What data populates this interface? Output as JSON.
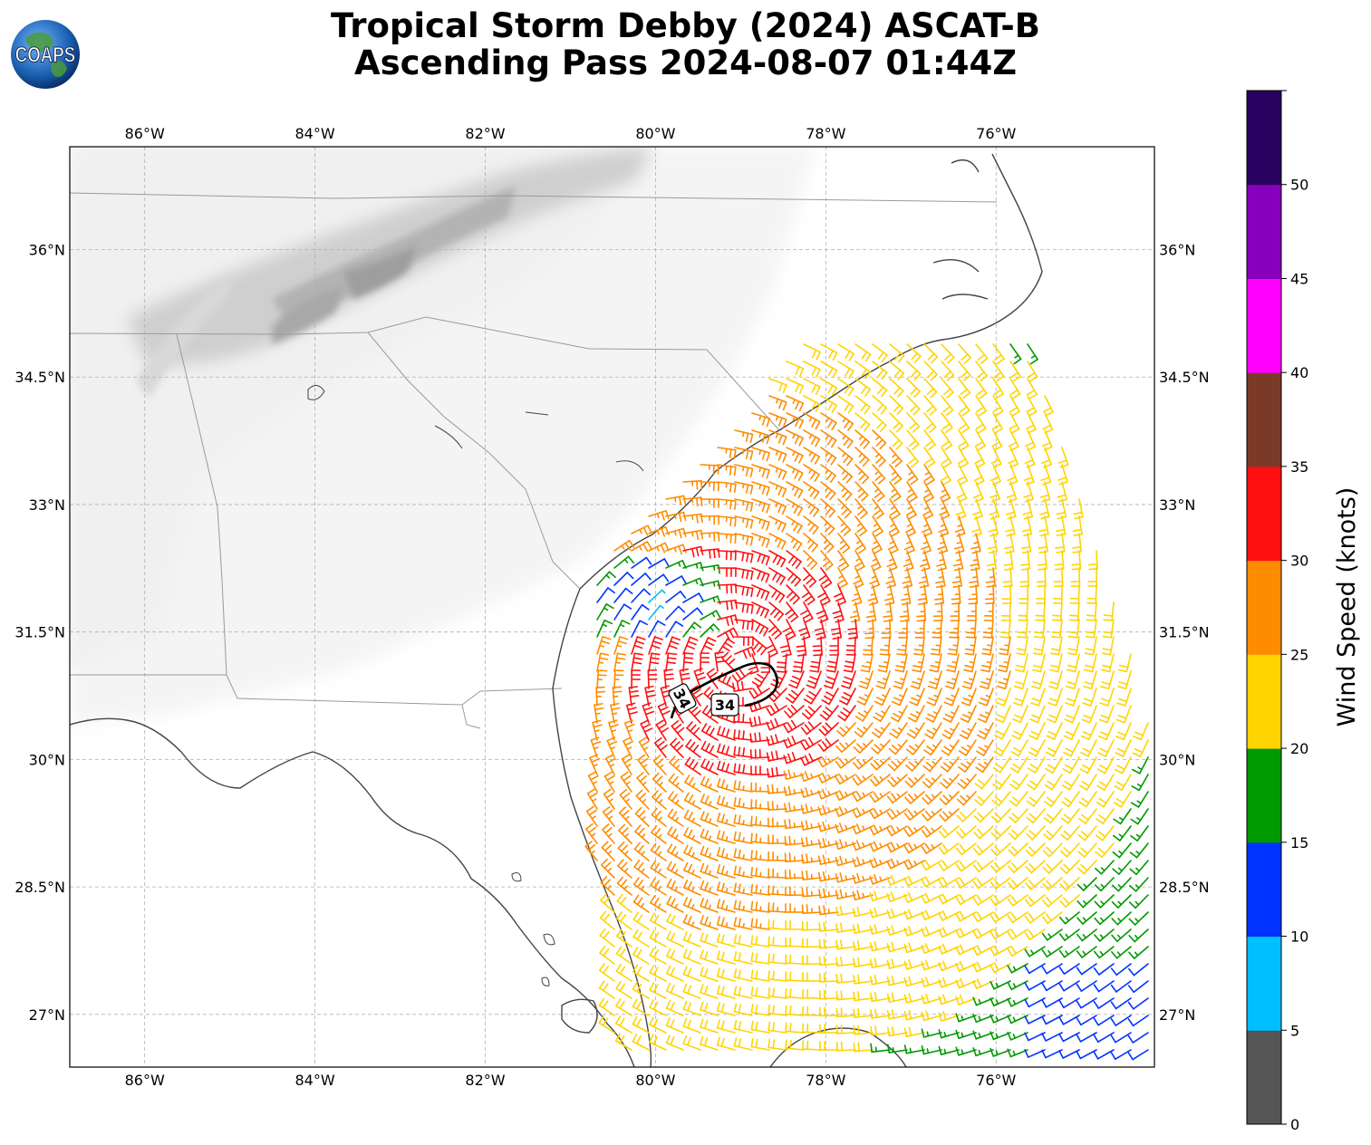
{
  "title": {
    "line1": "Tropical Storm Debby (2024) ASCAT-B",
    "line2": "Ascending Pass 2024-08-07 01:44Z"
  },
  "logo": {
    "text": "COAPS",
    "icon": "globe-icon"
  },
  "map": {
    "lon_range": [
      -86.88,
      -74.14
    ],
    "lat_range": [
      26.38,
      37.21
    ],
    "lon_ticks": [
      {
        "value": -86,
        "label": "86°W"
      },
      {
        "value": -84,
        "label": "84°W"
      },
      {
        "value": -82,
        "label": "82°W"
      },
      {
        "value": -80,
        "label": "80°W"
      },
      {
        "value": -78,
        "label": "78°W"
      },
      {
        "value": -76,
        "label": "76°W"
      }
    ],
    "lat_ticks": [
      {
        "value": 36,
        "label": "36°N"
      },
      {
        "value": 34.5,
        "label": "34.5°N"
      },
      {
        "value": 33,
        "label": "33°N"
      },
      {
        "value": 31.5,
        "label": "31.5°N"
      },
      {
        "value": 30,
        "label": "30°N"
      },
      {
        "value": 28.5,
        "label": "28.5°N"
      },
      {
        "value": 27,
        "label": "27°N"
      }
    ],
    "contour_label": "34",
    "storm_center": {
      "lon": -79.0,
      "lat": 31.15
    }
  },
  "colorbar": {
    "label": "Wind Speed (knots)",
    "bins": [
      {
        "min": 0,
        "max": 5,
        "color": "#555555"
      },
      {
        "min": 5,
        "max": 10,
        "color": "#00bfff"
      },
      {
        "min": 10,
        "max": 15,
        "color": "#0033ff"
      },
      {
        "min": 15,
        "max": 20,
        "color": "#009900"
      },
      {
        "min": 20,
        "max": 25,
        "color": "#ffd400"
      },
      {
        "min": 25,
        "max": 30,
        "color": "#ff8c00"
      },
      {
        "min": 30,
        "max": 35,
        "color": "#ff1010"
      },
      {
        "min": 35,
        "max": 40,
        "color": "#7b3a28"
      },
      {
        "min": 40,
        "max": 45,
        "color": "#ff00ff"
      },
      {
        "min": 45,
        "max": 50,
        "color": "#8800bb"
      },
      {
        "min": 50,
        "max": 55,
        "color": "#2a0060"
      }
    ],
    "ticks": [
      "0",
      "5",
      "10",
      "15",
      "20",
      "25",
      "30",
      "35",
      "40",
      "45",
      "50"
    ]
  }
}
